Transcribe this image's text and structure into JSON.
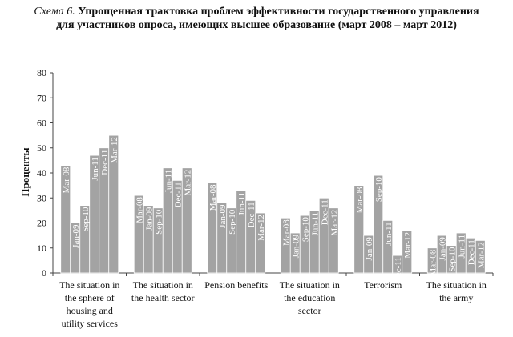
{
  "chart_data": {
    "type": "bar",
    "title_prefix": "Схема 6.",
    "title": "Упрощенная трактовка проблем эффективности государственного управления для участников опроса, имеющих высшее образование (март 2008 – март 2012)",
    "ylabel": "Проценты",
    "ylim": [
      0,
      80
    ],
    "yticks": [
      0,
      10,
      20,
      30,
      40,
      50,
      60,
      70,
      80
    ],
    "series_labels": [
      "Mar-08",
      "Jan-09",
      "Sep-10",
      "Jun-11",
      "Dec-11",
      "Mar-12"
    ],
    "categories": [
      [
        "The situation in",
        "the sphere of",
        "housing and",
        "utility services"
      ],
      [
        "The situation in",
        "the health sector"
      ],
      [
        "Pension benefits"
      ],
      [
        "The situation in",
        "the education",
        "sector"
      ],
      [
        "Terrorism"
      ],
      [
        "The situation in",
        "the army"
      ]
    ],
    "values": [
      [
        43,
        20,
        27,
        47,
        50,
        55
      ],
      [
        31,
        27,
        26,
        42,
        37,
        42
      ],
      [
        36,
        28,
        26,
        33,
        29,
        24
      ],
      [
        22,
        16,
        23,
        25,
        30,
        26
      ],
      [
        35,
        15,
        39,
        21,
        7,
        17
      ],
      [
        10,
        15,
        11,
        16,
        14,
        13
      ]
    ],
    "grid": false,
    "bar_color": "#a3a3a3"
  }
}
